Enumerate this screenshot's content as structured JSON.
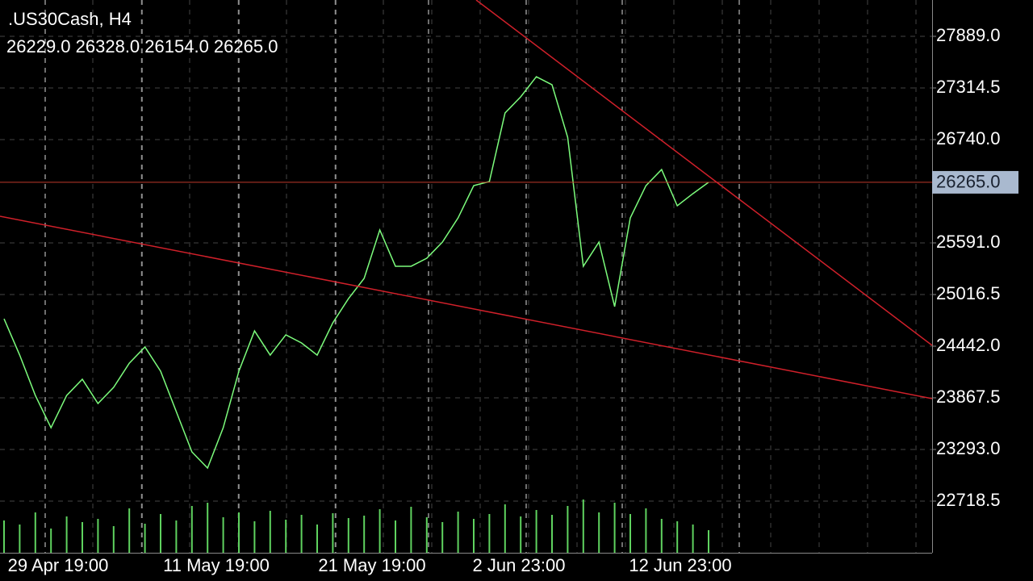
{
  "header": {
    "symbol": ".US30Cash, H4",
    "ohlc": "26229.0 26328.0 26154.0 26265.0"
  },
  "chart_data": {
    "type": "line",
    "x_labels": [
      "29 Apr 19:00",
      "11 May 19:00",
      "21 May 19:00",
      "2 Jun 23:00",
      "12 Jun 23:00"
    ],
    "price": {
      "color": "#7CFC7C",
      "values": [
        24747,
        24343,
        23894,
        23535,
        23894,
        24074,
        23804,
        23984,
        24253,
        24433,
        24164,
        23715,
        23266,
        23086,
        23535,
        24164,
        24612,
        24343,
        24568,
        24478,
        24343,
        24702,
        24971,
        25196,
        25735,
        25331,
        25331,
        25420,
        25600,
        25869,
        26228,
        26273,
        27036,
        27216,
        27440,
        27350,
        26766,
        25331,
        25600,
        24882,
        25869,
        26228,
        26407,
        26004,
        26139,
        26265
      ]
    },
    "volume": {
      "color": "#5fd35f",
      "values": [
        40,
        35,
        50,
        30,
        45,
        38,
        42,
        33,
        55,
        36,
        48,
        40,
        58,
        62,
        44,
        50,
        39,
        52,
        41,
        47,
        35,
        49,
        43,
        46,
        54,
        40,
        57,
        44,
        38,
        51,
        42,
        48,
        60,
        45,
        53,
        47,
        58,
        66,
        50,
        62,
        48,
        55,
        42,
        39,
        35,
        28
      ]
    },
    "current_price": {
      "value": 26265,
      "label": "26265.0",
      "color": "#c0392b"
    },
    "ylim": [
      22144,
      28293
    ],
    "yticks": [
      {
        "value": 22718.5,
        "label": "22718.5"
      },
      {
        "value": 23293,
        "label": "23293.0"
      },
      {
        "value": 23867.5,
        "label": "23867.5"
      },
      {
        "value": 24442,
        "label": "24442.0"
      },
      {
        "value": 25016.5,
        "label": "25016.5"
      },
      {
        "value": 25591,
        "label": "25591.0"
      },
      {
        "value": 26740,
        "label": "26740.0"
      },
      {
        "value": 27314.5,
        "label": "27314.5"
      },
      {
        "value": 27889,
        "label": "27889.0"
      }
    ],
    "grid": true
  }
}
